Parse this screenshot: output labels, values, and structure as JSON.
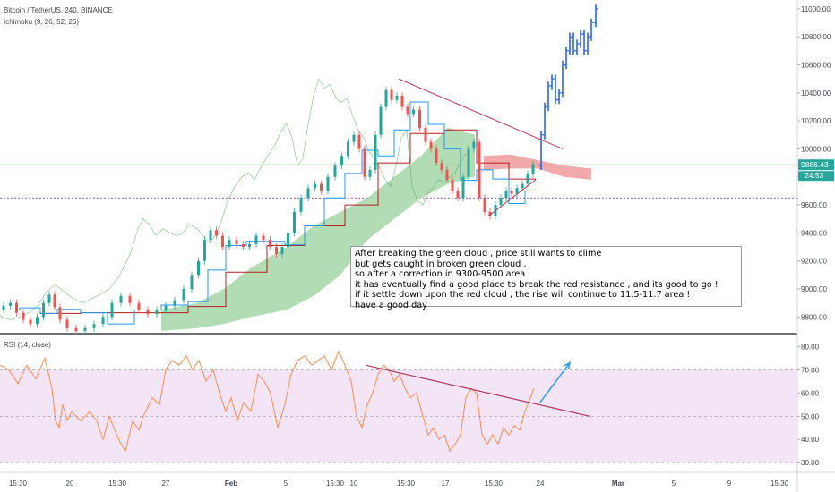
{
  "header": {
    "symbol": "Bitcoin / TetherUS, 240, BINANCE",
    "indicator": "Ichimoku (9, 26, 52, 26)"
  },
  "rsi_header": {
    "label": "RSI (14, close)"
  },
  "price_badges": {
    "current": "9886.43",
    "countdown": "24:53"
  },
  "annotation": {
    "lines": [
      "After breaking the green cloud , price still wants to clime",
      "but gets caught in broken green cloud ,",
      "so after a correction in 9300-9500 area",
      "it has eventually find a good place to break the red resistance , and its good to go !",
      "if it settle down upon the red cloud , the rise will continue to 11.5-11.7 area !",
      "have a good day"
    ]
  },
  "colors": {
    "up_candle": "#26a69a",
    "down_candle": "#ef5350",
    "projection": "#2962ff",
    "tenkan": "#2196f3",
    "kijun": "#b71c1c",
    "lagging": "#43a047",
    "cloud_bull": "#a5d6a7",
    "cloud_bear": "#ef9a9a",
    "rsi_line": "#ff8a50",
    "rsi_band": "#f3e5f5",
    "trendline": "#b0375b"
  },
  "chart_data": [
    {
      "type": "candlestick",
      "title": "Bitcoin / TetherUS, 240, BINANCE",
      "y_ticks": [
        8800,
        9000,
        9200,
        9400,
        9600,
        9800,
        10000,
        10200,
        10400,
        10600,
        10800,
        11000
      ],
      "ylim": [
        8700,
        11050
      ],
      "x_ticks": [
        "15:30",
        "20",
        "15:30",
        "27",
        "Feb",
        "5",
        "15:30",
        "10",
        "15:30",
        "17",
        "15:30",
        "24",
        "Mar",
        "5",
        "9",
        "15:30"
      ],
      "current_price": 9886.43,
      "horizontal_levels": [
        9886.43,
        9650
      ],
      "price_path": [
        [
          0,
          8850
        ],
        [
          8,
          8880
        ],
        [
          15,
          8900
        ],
        [
          22,
          8830
        ],
        [
          30,
          8780
        ],
        [
          38,
          8750
        ],
        [
          45,
          8800
        ],
        [
          52,
          8900
        ],
        [
          58,
          8960
        ],
        [
          64,
          8870
        ],
        [
          70,
          8780
        ],
        [
          80,
          8720
        ],
        [
          90,
          8700
        ],
        [
          100,
          8720
        ],
        [
          110,
          8750
        ],
        [
          120,
          8800
        ],
        [
          130,
          8900
        ],
        [
          140,
          8950
        ],
        [
          150,
          8900
        ],
        [
          160,
          8850
        ],
        [
          170,
          8820
        ],
        [
          180,
          8850
        ],
        [
          190,
          8880
        ],
        [
          200,
          8920
        ],
        [
          210,
          9000
        ],
        [
          218,
          9100
        ],
        [
          225,
          9200
        ],
        [
          232,
          9350
        ],
        [
          238,
          9420
        ],
        [
          245,
          9380
        ],
        [
          252,
          9300
        ],
        [
          260,
          9350
        ],
        [
          268,
          9320
        ],
        [
          275,
          9300
        ],
        [
          282,
          9320
        ],
        [
          290,
          9380
        ],
        [
          298,
          9350
        ],
        [
          305,
          9300
        ],
        [
          312,
          9250
        ],
        [
          318,
          9300
        ],
        [
          325,
          9400
        ],
        [
          332,
          9550
        ],
        [
          340,
          9650
        ],
        [
          348,
          9720
        ],
        [
          355,
          9750
        ],
        [
          362,
          9700
        ],
        [
          370,
          9800
        ],
        [
          378,
          9880
        ],
        [
          385,
          9950
        ],
        [
          392,
          10050
        ],
        [
          398,
          10100
        ],
        [
          404,
          10000
        ],
        [
          410,
          9800
        ],
        [
          416,
          9850
        ],
        [
          422,
          10100
        ],
        [
          428,
          10300
        ],
        [
          434,
          10420
        ],
        [
          440,
          10350
        ],
        [
          446,
          10380
        ],
        [
          452,
          10300
        ],
        [
          458,
          10250
        ],
        [
          465,
          10280
        ],
        [
          472,
          10150
        ],
        [
          478,
          10050
        ],
        [
          484,
          10000
        ],
        [
          490,
          9900
        ],
        [
          496,
          9850
        ],
        [
          502,
          9780
        ],
        [
          508,
          9700
        ],
        [
          514,
          9650
        ],
        [
          520,
          9800
        ],
        [
          526,
          10000
        ],
        [
          532,
          10050
        ],
        [
          538,
          9650
        ],
        [
          544,
          9550
        ],
        [
          550,
          9520
        ],
        [
          556,
          9600
        ],
        [
          562,
          9650
        ],
        [
          568,
          9700
        ],
        [
          574,
          9680
        ],
        [
          580,
          9720
        ],
        [
          586,
          9750
        ],
        [
          592,
          9820
        ],
        [
          598,
          9890
        ]
      ],
      "projection_path": [
        [
          600,
          9880
        ],
        [
          604,
          10100
        ],
        [
          608,
          10300
        ],
        [
          612,
          10450
        ],
        [
          616,
          10500
        ],
        [
          620,
          10350
        ],
        [
          624,
          10400
        ],
        [
          628,
          10600
        ],
        [
          632,
          10700
        ],
        [
          636,
          10800
        ],
        [
          640,
          10700
        ],
        [
          644,
          10750
        ],
        [
          648,
          10820
        ],
        [
          652,
          10700
        ],
        [
          656,
          10800
        ],
        [
          660,
          10900
        ],
        [
          665,
          11000
        ]
      ],
      "cloud_bullish": [
        [
          180,
          8850,
          8700
        ],
        [
          220,
          8900,
          8720
        ],
        [
          250,
          9000,
          8750
        ],
        [
          280,
          9150,
          8800
        ],
        [
          320,
          9300,
          8850
        ],
        [
          350,
          9450,
          8950
        ],
        [
          380,
          9550,
          9100
        ],
        [
          410,
          9650,
          9350
        ],
        [
          440,
          9800,
          9500
        ],
        [
          470,
          9950,
          9650
        ],
        [
          500,
          10150,
          9750
        ],
        [
          530,
          10100,
          9800
        ]
      ],
      "cloud_bearish": [
        [
          540,
          9950,
          9850
        ],
        [
          570,
          9960,
          9860
        ],
        [
          600,
          9920,
          9860
        ],
        [
          630,
          9880,
          9800
        ],
        [
          660,
          9860,
          9780
        ]
      ],
      "trendlines": [
        {
          "from": [
            445,
            10500
          ],
          "to": [
            628,
            10000
          ]
        },
        {
          "from": [
            545,
            9520
          ],
          "to": [
            598,
            9780
          ]
        }
      ]
    },
    {
      "type": "line",
      "title": "RSI (14, close)",
      "y_ticks": [
        30,
        40,
        50,
        60,
        70,
        80
      ],
      "ylim": [
        27,
        84
      ],
      "band": [
        30,
        70
      ],
      "series": [
        {
          "values": [
            [
              0,
              72
            ],
            [
              10,
              70
            ],
            [
              20,
              64
            ],
            [
              30,
              72
            ],
            [
              40,
              66
            ],
            [
              50,
              75
            ],
            [
              58,
              62
            ],
            [
              62,
              48
            ],
            [
              66,
              45
            ],
            [
              70,
              55
            ],
            [
              75,
              48
            ],
            [
              80,
              52
            ],
            [
              90,
              48
            ],
            [
              100,
              52
            ],
            [
              108,
              48
            ],
            [
              115,
              40
            ],
            [
              122,
              50
            ],
            [
              128,
              44
            ],
            [
              135,
              38
            ],
            [
              140,
              35
            ],
            [
              148,
              48
            ],
            [
              155,
              44
            ],
            [
              160,
              50
            ],
            [
              170,
              58
            ],
            [
              178,
              55
            ],
            [
              185,
              70
            ],
            [
              192,
              74
            ],
            [
              200,
              72
            ],
            [
              208,
              76
            ],
            [
              215,
              70
            ],
            [
              222,
              74
            ],
            [
              230,
              65
            ],
            [
              238,
              70
            ],
            [
              245,
              60
            ],
            [
              252,
              52
            ],
            [
              258,
              58
            ],
            [
              265,
              48
            ],
            [
              272,
              56
            ],
            [
              280,
              52
            ],
            [
              288,
              68
            ],
            [
              295,
              65
            ],
            [
              302,
              60
            ],
            [
              310,
              45
            ],
            [
              318,
              55
            ],
            [
              325,
              68
            ],
            [
              332,
              74
            ],
            [
              340,
              76
            ],
            [
              348,
              72
            ],
            [
              355,
              74
            ],
            [
              362,
              76
            ],
            [
              370,
              70
            ],
            [
              378,
              78
            ],
            [
              385,
              72
            ],
            [
              392,
              65
            ],
            [
              398,
              50
            ],
            [
              404,
              45
            ],
            [
              410,
              55
            ],
            [
              416,
              60
            ],
            [
              422,
              68
            ],
            [
              428,
              72
            ],
            [
              434,
              70
            ],
            [
              440,
              65
            ],
            [
              446,
              68
            ],
            [
              452,
              62
            ],
            [
              458,
              58
            ],
            [
              465,
              60
            ],
            [
              472,
              50
            ],
            [
              478,
              42
            ],
            [
              484,
              45
            ],
            [
              490,
              40
            ],
            [
              496,
              42
            ],
            [
              502,
              35
            ],
            [
              508,
              38
            ],
            [
              514,
              42
            ],
            [
              520,
              58
            ],
            [
              526,
              62
            ],
            [
              532,
              60
            ],
            [
              538,
              42
            ],
            [
              544,
              38
            ],
            [
              550,
              42
            ],
            [
              556,
              38
            ],
            [
              562,
              45
            ],
            [
              568,
              42
            ],
            [
              574,
              46
            ],
            [
              580,
              44
            ],
            [
              586,
              52
            ],
            [
              592,
              58
            ],
            [
              596,
              62
            ]
          ]
        }
      ],
      "trendlines": [
        {
          "from": [
            408,
            72
          ],
          "to": [
            658,
            50
          ]
        }
      ],
      "arrow": {
        "from": [
          603,
          56
        ],
        "to": [
          636,
          73
        ]
      }
    }
  ]
}
